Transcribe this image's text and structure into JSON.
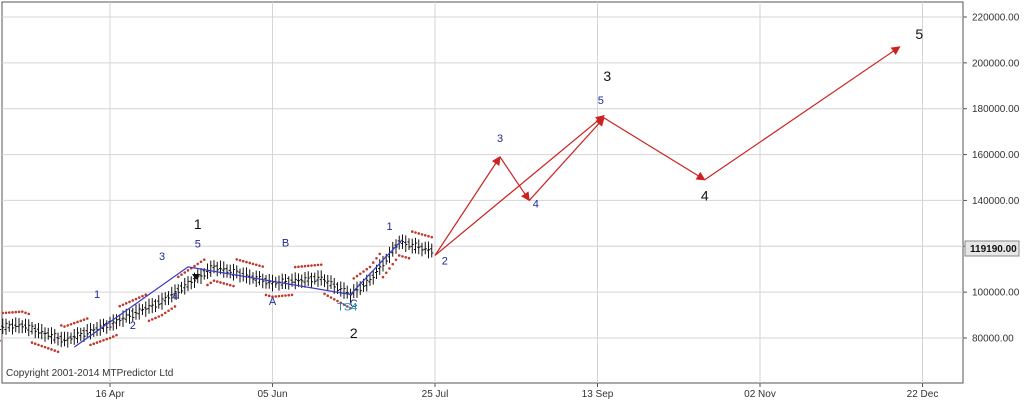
{
  "copyright": "Copyright 2001-2014 MTPredictor Ltd",
  "last_price_label": "119190.00",
  "colors": {
    "grid": "#d4d4d4",
    "axis": "#555555",
    "projection": "#cc2222",
    "trendline": "#3a3ac8",
    "dots": "#c0392b",
    "candle": "#111111",
    "wave_blue": "#1f2a9a",
    "ts_label": "#1a8fb5",
    "price_box": "#e6e6e6"
  },
  "chart_data": {
    "type": "line",
    "title": "",
    "xlabel": "",
    "ylabel": "",
    "x_ticks": [
      "16 Apr",
      "05 Jun",
      "25 Jul",
      "13 Sep",
      "02 Nov",
      "22 Dec"
    ],
    "y_ticks": [
      "80000.00",
      "100000.00",
      "120000.00",
      "140000.00",
      "160000.00",
      "180000.00",
      "200000.00",
      "220000.00"
    ],
    "ylim": [
      63000,
      225000
    ],
    "grid": true,
    "price_series": {
      "name": "price",
      "start": "2015-03-05",
      "end": "2015-07-24",
      "approx_path": [
        [
          "2015-03-05",
          84000
        ],
        [
          "2015-03-20",
          85500
        ],
        [
          "2015-04-02",
          79000
        ],
        [
          "2015-04-16",
          86000
        ],
        [
          "2015-05-02",
          96000
        ],
        [
          "2015-05-18",
          111000
        ],
        [
          "2015-06-05",
          104000
        ],
        [
          "2015-06-20",
          106000
        ],
        [
          "2015-06-29",
          99000
        ],
        [
          "2015-07-05",
          105000
        ],
        [
          "2015-07-14",
          122000
        ],
        [
          "2015-07-24",
          118000
        ]
      ]
    },
    "wave_structure": [
      [
        "2015-04-05",
        76000
      ],
      [
        "2015-05-10",
        111000
      ],
      [
        "2015-06-29",
        99000
      ],
      [
        "2015-07-15",
        123000
      ]
    ],
    "projection_path": [
      [
        "2015-07-25",
        116000
      ],
      [
        "2015-08-14",
        159000
      ],
      [
        "2015-08-23",
        140000
      ],
      [
        "2015-09-15",
        176000
      ],
      [
        "2015-10-16",
        149000
      ],
      [
        "2015-12-15",
        207000
      ]
    ],
    "projection_extra": [
      [
        "2015-07-25",
        116000
      ],
      [
        "2015-09-15",
        177000
      ]
    ],
    "labels": [
      {
        "text": "1",
        "x": "2015-04-12",
        "y": 97500,
        "style": "blue"
      },
      {
        "text": "2",
        "x": "2015-04-23",
        "y": 84000,
        "style": "blue"
      },
      {
        "text": "3",
        "x": "2015-05-02",
        "y": 114000,
        "style": "blue"
      },
      {
        "text": "4",
        "x": "2015-05-06",
        "y": 96500,
        "style": "blue"
      },
      {
        "text": "5",
        "x": "2015-05-13",
        "y": 119500,
        "style": "blue"
      },
      {
        "text": "1",
        "x": "2015-05-13",
        "y": 127500,
        "style": "black"
      },
      {
        "text": "B",
        "x": "2015-06-09",
        "y": 120000,
        "style": "blue"
      },
      {
        "text": "A",
        "x": "2015-06-05",
        "y": 94500,
        "style": "blue"
      },
      {
        "text": "C",
        "x": "2015-06-30",
        "y": 93500,
        "style": "blue"
      },
      {
        "text": "TS4",
        "x": "2015-06-28",
        "y": 92000,
        "style": "ts"
      },
      {
        "text": "2",
        "x": "2015-06-30",
        "y": 80000,
        "style": "black"
      },
      {
        "text": "1",
        "x": "2015-07-11",
        "y": 127000,
        "style": "blue"
      },
      {
        "text": "2",
        "x": "2015-07-28",
        "y": 112000,
        "style": "blue"
      },
      {
        "text": "3",
        "x": "2015-08-14",
        "y": 165500,
        "style": "blue"
      },
      {
        "text": "4",
        "x": "2015-08-25",
        "y": 137000,
        "style": "blue"
      },
      {
        "text": "5",
        "x": "2015-09-14",
        "y": 182000,
        "style": "blue"
      },
      {
        "text": "3",
        "x": "2015-09-16",
        "y": 192000,
        "style": "black"
      },
      {
        "text": "4",
        "x": "2015-10-16",
        "y": 140000,
        "style": "black"
      },
      {
        "text": "5",
        "x": "2015-12-21",
        "y": 210500,
        "style": "black"
      }
    ]
  }
}
